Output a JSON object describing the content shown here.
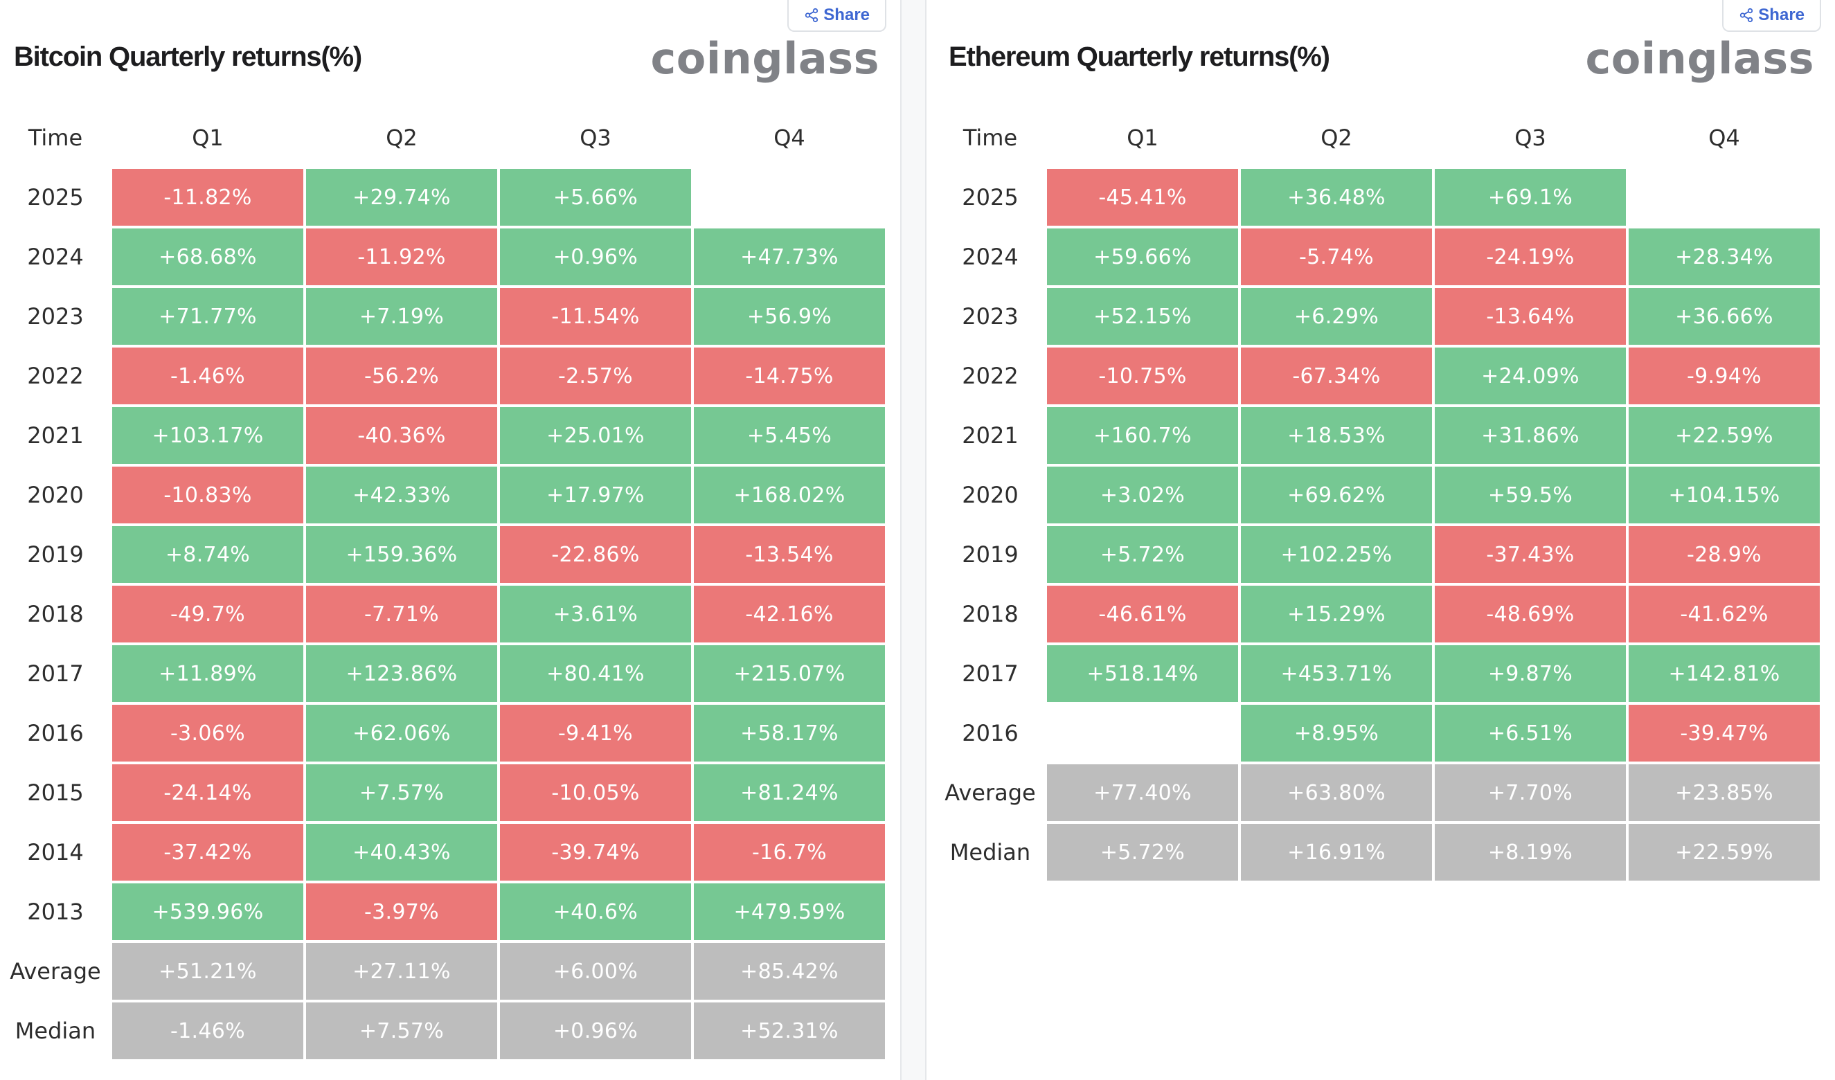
{
  "share_label": "Share",
  "brand": "coinglass",
  "colors": {
    "positive": "#76c893",
    "negative": "#eb7878",
    "stat": "#bdbdbd"
  },
  "chart_data": [
    {
      "type": "table",
      "title": "Bitcoin Quarterly returns(%)",
      "columns": [
        "Time",
        "Q1",
        "Q2",
        "Q3",
        "Q4"
      ],
      "rows": [
        {
          "label": "2025",
          "values": [
            "-11.82%",
            "+29.74%",
            "+5.66%",
            ""
          ]
        },
        {
          "label": "2024",
          "values": [
            "+68.68%",
            "-11.92%",
            "+0.96%",
            "+47.73%"
          ]
        },
        {
          "label": "2023",
          "values": [
            "+71.77%",
            "+7.19%",
            "-11.54%",
            "+56.9%"
          ]
        },
        {
          "label": "2022",
          "values": [
            "-1.46%",
            "-56.2%",
            "-2.57%",
            "-14.75%"
          ]
        },
        {
          "label": "2021",
          "values": [
            "+103.17%",
            "-40.36%",
            "+25.01%",
            "+5.45%"
          ]
        },
        {
          "label": "2020",
          "values": [
            "-10.83%",
            "+42.33%",
            "+17.97%",
            "+168.02%"
          ]
        },
        {
          "label": "2019",
          "values": [
            "+8.74%",
            "+159.36%",
            "-22.86%",
            "-13.54%"
          ]
        },
        {
          "label": "2018",
          "values": [
            "-49.7%",
            "-7.71%",
            "+3.61%",
            "-42.16%"
          ]
        },
        {
          "label": "2017",
          "values": [
            "+11.89%",
            "+123.86%",
            "+80.41%",
            "+215.07%"
          ]
        },
        {
          "label": "2016",
          "values": [
            "-3.06%",
            "+62.06%",
            "-9.41%",
            "+58.17%"
          ]
        },
        {
          "label": "2015",
          "values": [
            "-24.14%",
            "+7.57%",
            "-10.05%",
            "+81.24%"
          ]
        },
        {
          "label": "2014",
          "values": [
            "-37.42%",
            "+40.43%",
            "-39.74%",
            "-16.7%"
          ]
        },
        {
          "label": "2013",
          "values": [
            "+539.96%",
            "-3.97%",
            "+40.6%",
            "+479.59%"
          ]
        },
        {
          "label": "Average",
          "values": [
            "+51.21%",
            "+27.11%",
            "+6.00%",
            "+85.42%"
          ],
          "stat": true
        },
        {
          "label": "Median",
          "values": [
            "-1.46%",
            "+7.57%",
            "+0.96%",
            "+52.31%"
          ],
          "stat": true
        }
      ]
    },
    {
      "type": "table",
      "title": "Ethereum Quarterly returns(%)",
      "columns": [
        "Time",
        "Q1",
        "Q2",
        "Q3",
        "Q4"
      ],
      "rows": [
        {
          "label": "2025",
          "values": [
            "-45.41%",
            "+36.48%",
            "+69.1%",
            ""
          ]
        },
        {
          "label": "2024",
          "values": [
            "+59.66%",
            "-5.74%",
            "-24.19%",
            "+28.34%"
          ]
        },
        {
          "label": "2023",
          "values": [
            "+52.15%",
            "+6.29%",
            "-13.64%",
            "+36.66%"
          ]
        },
        {
          "label": "2022",
          "values": [
            "-10.75%",
            "-67.34%",
            "+24.09%",
            "-9.94%"
          ]
        },
        {
          "label": "2021",
          "values": [
            "+160.7%",
            "+18.53%",
            "+31.86%",
            "+22.59%"
          ]
        },
        {
          "label": "2020",
          "values": [
            "+3.02%",
            "+69.62%",
            "+59.5%",
            "+104.15%"
          ]
        },
        {
          "label": "2019",
          "values": [
            "+5.72%",
            "+102.25%",
            "-37.43%",
            "-28.9%"
          ]
        },
        {
          "label": "2018",
          "values": [
            "-46.61%",
            "+15.29%",
            "-48.69%",
            "-41.62%"
          ]
        },
        {
          "label": "2017",
          "values": [
            "+518.14%",
            "+453.71%",
            "+9.87%",
            "+142.81%"
          ]
        },
        {
          "label": "2016",
          "values": [
            "",
            "+8.95%",
            "+6.51%",
            "-39.47%"
          ]
        },
        {
          "label": "Average",
          "values": [
            "+77.40%",
            "+63.80%",
            "+7.70%",
            "+23.85%"
          ],
          "stat": true
        },
        {
          "label": "Median",
          "values": [
            "+5.72%",
            "+16.91%",
            "+8.19%",
            "+22.59%"
          ],
          "stat": true
        }
      ]
    }
  ]
}
